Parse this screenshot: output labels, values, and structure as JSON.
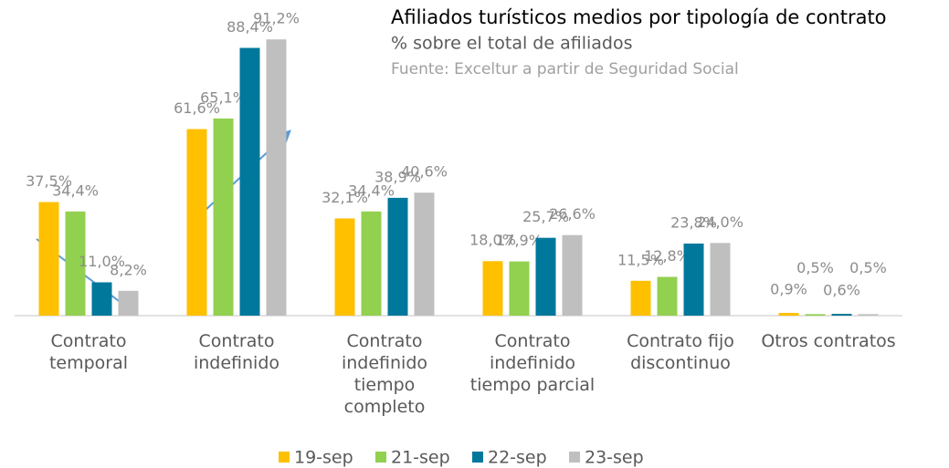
{
  "chart_data": {
    "type": "bar",
    "title": "Afiliados  turísticos medios por tipología de contrato",
    "subtitle": "% sobre el total de afiliados",
    "source": "Fuente: Exceltur a partir de Seguridad Social",
    "categories": [
      "Contrato temporal",
      "Contrato indefinido",
      "Contrato indefinido tiempo completo",
      "Contrato indefinido tiempo parcial",
      "Contrato fijo discontinuo",
      "Otros contratos"
    ],
    "series": [
      {
        "name": "19-sep",
        "color": "#FFC000",
        "values": [
          37.5,
          61.6,
          32.1,
          18.0,
          11.5,
          0.9
        ],
        "value_labels": [
          "37,5%",
          "61,6%",
          "32,1%",
          "18,0%",
          "11,5%",
          "0,9%"
        ]
      },
      {
        "name": "21-sep",
        "color": "#92D050",
        "values": [
          34.4,
          65.1,
          34.4,
          17.9,
          12.8,
          0.5
        ],
        "value_labels": [
          "34,4%",
          "65,1%",
          "34,4%",
          "17,9%",
          "12,8%",
          "0,5%"
        ]
      },
      {
        "name": "22-sep",
        "color": "#00789C",
        "values": [
          11.0,
          88.4,
          38.9,
          25.7,
          23.8,
          0.6
        ],
        "value_labels": [
          "11,0%",
          "88,4%",
          "38,9%",
          "25,7%",
          "23,8%",
          "0,6%"
        ]
      },
      {
        "name": "23-sep",
        "color": "#BFBFBF",
        "values": [
          8.2,
          91.2,
          40.6,
          26.6,
          24.0,
          0.5
        ],
        "value_labels": [
          "8,2%",
          "91,2%",
          "40,6%",
          "26,6%",
          "24,0%",
          "0,5%"
        ]
      }
    ],
    "ylim": [
      0,
      100
    ],
    "legend": "bottom"
  }
}
